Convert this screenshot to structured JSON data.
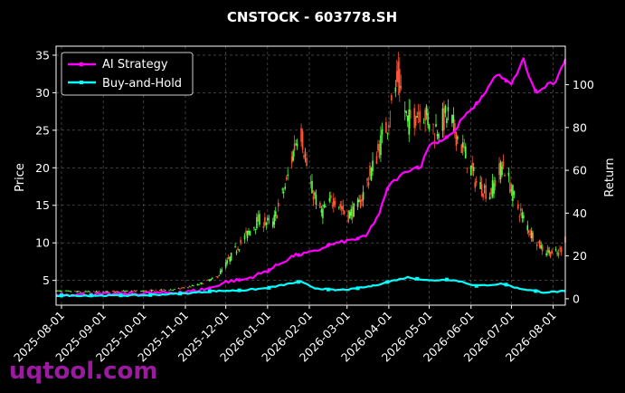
{
  "chart_data": {
    "type": "line",
    "title": "CNSTOCK - 603778.SH",
    "ylabel_left": "Price",
    "ylabel_right": "Return",
    "ylim_left": [
      1.7,
      36.2
    ],
    "yticks_left": [
      "5",
      "10",
      "15",
      "20",
      "25",
      "30",
      "35"
    ],
    "ylim_right": [
      -3,
      118
    ],
    "yticks_right": [
      "0",
      "20",
      "40",
      "60",
      "80",
      "100"
    ],
    "xlim": [
      "2025-07-28",
      "2026-08-10"
    ],
    "xticks": [
      "2025-08-01",
      "2025-09-01",
      "2025-10-01",
      "2025-11-01",
      "2025-12-01",
      "2026-01-01",
      "2026-02-01",
      "2026-03-01",
      "2026-04-01",
      "2026-05-01",
      "2026-06-01",
      "2026-07-01",
      "2026-08-01"
    ],
    "grid": true,
    "legend_position": "top-left",
    "watermark": "uqtool.com",
    "colors": {
      "ai": "#ff00ff",
      "bh": "#00ffff",
      "up": "#ff5533",
      "down": "#55ff44",
      "bg": "#000000"
    },
    "price_path": [
      [
        "2025-07-28",
        3.6
      ],
      [
        "2025-08-15",
        3.5
      ],
      [
        "2025-09-01",
        3.5
      ],
      [
        "2025-10-01",
        3.6
      ],
      [
        "2025-10-25",
        3.8
      ],
      [
        "2025-11-10",
        4.4
      ],
      [
        "2025-11-25",
        5.5
      ],
      [
        "2025-12-10",
        9.5
      ],
      [
        "2025-12-25",
        13.0
      ],
      [
        "2026-01-05",
        12.5
      ],
      [
        "2026-01-15",
        18.0
      ],
      [
        "2026-01-25",
        26.0
      ],
      [
        "2026-02-01",
        18.0
      ],
      [
        "2026-02-10",
        14.0
      ],
      [
        "2026-02-20",
        16.0
      ],
      [
        "2026-03-01",
        13.5
      ],
      [
        "2026-03-10",
        15.0
      ],
      [
        "2026-03-20",
        20.0
      ],
      [
        "2026-03-31",
        26.0
      ],
      [
        "2026-04-08",
        32.0
      ],
      [
        "2026-04-15",
        26.0
      ],
      [
        "2026-04-25",
        28.0
      ],
      [
        "2026-05-05",
        25.0
      ],
      [
        "2026-05-15",
        27.0
      ],
      [
        "2026-05-25",
        23.0
      ],
      [
        "2026-06-05",
        18.0
      ],
      [
        "2026-06-15",
        16.5
      ],
      [
        "2026-06-25",
        20.5
      ],
      [
        "2026-07-05",
        15.0
      ],
      [
        "2026-07-15",
        11.5
      ],
      [
        "2026-07-25",
        9.0
      ],
      [
        "2026-08-05",
        8.5
      ],
      [
        "2026-08-10",
        10.5
      ]
    ],
    "series": [
      {
        "name": "AI Strategy",
        "points": [
          [
            "2025-07-28",
            2
          ],
          [
            "2025-09-01",
            2
          ],
          [
            "2025-10-01",
            2.5
          ],
          [
            "2025-11-01",
            3
          ],
          [
            "2025-11-20",
            5
          ],
          [
            "2025-12-01",
            8
          ],
          [
            "2025-12-15",
            9
          ],
          [
            "2026-01-01",
            13
          ],
          [
            "2026-01-20",
            20
          ],
          [
            "2026-02-05",
            22
          ],
          [
            "2026-02-15",
            25
          ],
          [
            "2026-03-01",
            27
          ],
          [
            "2026-03-15",
            29
          ],
          [
            "2026-03-25",
            40
          ],
          [
            "2026-04-01",
            53
          ],
          [
            "2026-04-15",
            60
          ],
          [
            "2026-04-25",
            62
          ],
          [
            "2026-05-01",
            72
          ],
          [
            "2026-05-10",
            74
          ],
          [
            "2026-05-20",
            78
          ],
          [
            "2026-05-25",
            84
          ],
          [
            "2026-06-01",
            88
          ],
          [
            "2026-06-10",
            95
          ],
          [
            "2026-06-20",
            105
          ],
          [
            "2026-07-01",
            100
          ],
          [
            "2026-07-10",
            112
          ],
          [
            "2026-07-15",
            102
          ],
          [
            "2026-07-20",
            96
          ],
          [
            "2026-07-28",
            100
          ],
          [
            "2026-08-03",
            101
          ],
          [
            "2026-08-10",
            112
          ]
        ]
      },
      {
        "name": "Buy-and-Hold",
        "points": [
          [
            "2025-07-28",
            1.5
          ],
          [
            "2025-09-01",
            1.5
          ],
          [
            "2025-10-01",
            1.6
          ],
          [
            "2025-11-01",
            2.5
          ],
          [
            "2025-11-20",
            3.5
          ],
          [
            "2025-12-15",
            4.0
          ],
          [
            "2026-01-01",
            5.0
          ],
          [
            "2026-01-25",
            8.0
          ],
          [
            "2026-02-05",
            5.0
          ],
          [
            "2026-02-20",
            4.0
          ],
          [
            "2026-03-05",
            4.5
          ],
          [
            "2026-03-20",
            6.0
          ],
          [
            "2026-04-01",
            8.0
          ],
          [
            "2026-04-15",
            10.0
          ],
          [
            "2026-05-01",
            8.5
          ],
          [
            "2026-05-15",
            9.0
          ],
          [
            "2026-05-25",
            8.0
          ],
          [
            "2026-06-05",
            6.0
          ],
          [
            "2026-06-15",
            6.5
          ],
          [
            "2026-06-25",
            7.0
          ],
          [
            "2026-07-05",
            5.0
          ],
          [
            "2026-07-15",
            4.0
          ],
          [
            "2026-07-25",
            3.0
          ],
          [
            "2026-08-10",
            3.5
          ]
        ]
      }
    ]
  }
}
